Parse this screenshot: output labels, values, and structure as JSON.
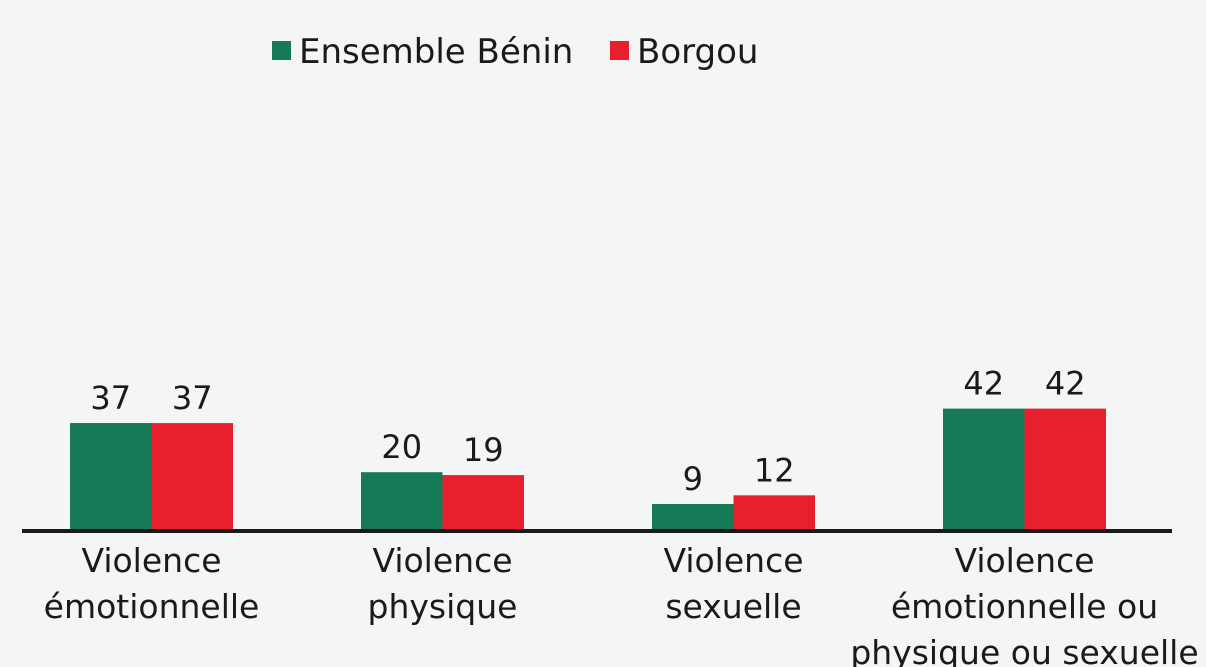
{
  "chart_data": {
    "type": "bar",
    "categories": [
      [
        "Violence",
        "émotionnelle"
      ],
      [
        "Violence",
        "physique"
      ],
      [
        "Violence",
        "sexuelle"
      ],
      [
        "Violence",
        "émotionnelle ou",
        "physique ou sexuelle"
      ]
    ],
    "series": [
      {
        "name": "Ensemble Bénin",
        "color": "#167a56",
        "values": [
          37,
          20,
          9,
          42
        ]
      },
      {
        "name": "Borgou",
        "color": "#e81f2e",
        "values": [
          37,
          19,
          12,
          42
        ]
      }
    ]
  }
}
